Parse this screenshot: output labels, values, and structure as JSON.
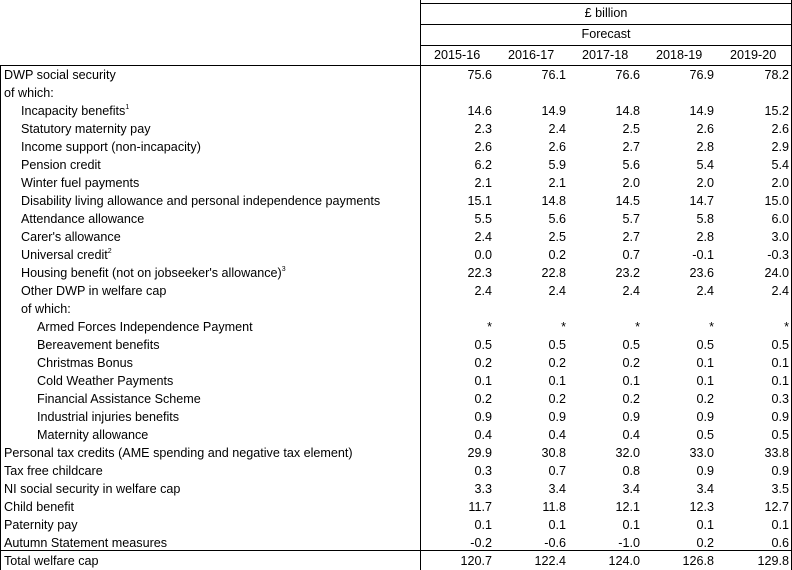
{
  "header": {
    "unit": "£ billion",
    "forecast": "Forecast",
    "years": [
      "2015-16",
      "2016-17",
      "2017-18",
      "2018-19",
      "2019-20"
    ]
  },
  "rows": [
    {
      "label": "DWP social security",
      "indent": 0,
      "values": [
        "75.6",
        "76.1",
        "76.6",
        "76.9",
        "78.2"
      ]
    },
    {
      "label": "of which:",
      "indent": 0,
      "values": []
    },
    {
      "label": "Incapacity benefits",
      "sup": "1",
      "indent": 1,
      "values": [
        "14.6",
        "14.9",
        "14.8",
        "14.9",
        "15.2"
      ]
    },
    {
      "label": "Statutory maternity pay",
      "indent": 1,
      "values": [
        "2.3",
        "2.4",
        "2.5",
        "2.6",
        "2.6"
      ]
    },
    {
      "label": "Income support (non-incapacity)",
      "indent": 1,
      "values": [
        "2.6",
        "2.6",
        "2.7",
        "2.8",
        "2.9"
      ]
    },
    {
      "label": "Pension credit",
      "indent": 1,
      "values": [
        "6.2",
        "5.9",
        "5.6",
        "5.4",
        "5.4"
      ]
    },
    {
      "label": "Winter fuel payments",
      "indent": 1,
      "values": [
        "2.1",
        "2.1",
        "2.0",
        "2.0",
        "2.0"
      ]
    },
    {
      "label": "Disability living allowance and personal independence payments",
      "indent": 1,
      "values": [
        "15.1",
        "14.8",
        "14.5",
        "14.7",
        "15.0"
      ]
    },
    {
      "label": "Attendance allowance",
      "indent": 1,
      "values": [
        "5.5",
        "5.6",
        "5.7",
        "5.8",
        "6.0"
      ]
    },
    {
      "label": "Carer's allowance",
      "indent": 1,
      "values": [
        "2.4",
        "2.5",
        "2.7",
        "2.8",
        "3.0"
      ]
    },
    {
      "label": "Universal credit",
      "sup": "2",
      "indent": 1,
      "values": [
        "0.0",
        "0.2",
        "0.7",
        "-0.1",
        "-0.3"
      ]
    },
    {
      "label": "Housing benefit (not on jobseeker's allowance)",
      "sup": "3",
      "indent": 1,
      "values": [
        "22.3",
        "22.8",
        "23.2",
        "23.6",
        "24.0"
      ]
    },
    {
      "label": "Other DWP in welfare cap",
      "indent": 1,
      "values": [
        "2.4",
        "2.4",
        "2.4",
        "2.4",
        "2.4"
      ]
    },
    {
      "label": "of which:",
      "indent": 1,
      "values": []
    },
    {
      "label": "Armed Forces Independence Payment",
      "indent": 2,
      "values": [
        "*",
        "*",
        "*",
        "*",
        "*"
      ]
    },
    {
      "label": "Bereavement benefits",
      "indent": 2,
      "values": [
        "0.5",
        "0.5",
        "0.5",
        "0.5",
        "0.5"
      ]
    },
    {
      "label": "Christmas Bonus",
      "indent": 2,
      "values": [
        "0.2",
        "0.2",
        "0.2",
        "0.1",
        "0.1"
      ]
    },
    {
      "label": "Cold Weather Payments",
      "indent": 2,
      "values": [
        "0.1",
        "0.1",
        "0.1",
        "0.1",
        "0.1"
      ]
    },
    {
      "label": "Financial Assistance Scheme",
      "indent": 2,
      "values": [
        "0.2",
        "0.2",
        "0.2",
        "0.2",
        "0.3"
      ]
    },
    {
      "label": "Industrial injuries benefits",
      "indent": 2,
      "values": [
        "0.9",
        "0.9",
        "0.9",
        "0.9",
        "0.9"
      ]
    },
    {
      "label": "Maternity allowance",
      "indent": 2,
      "values": [
        "0.4",
        "0.4",
        "0.4",
        "0.5",
        "0.5"
      ]
    },
    {
      "label": "Personal tax credits (AME spending and negative tax element)",
      "indent": 0,
      "values": [
        "29.9",
        "30.8",
        "32.0",
        "33.0",
        "33.8"
      ]
    },
    {
      "label": "Tax free childcare",
      "indent": 0,
      "values": [
        "0.3",
        "0.7",
        "0.8",
        "0.9",
        "0.9"
      ]
    },
    {
      "label": "NI social security in welfare cap",
      "indent": 0,
      "values": [
        "3.3",
        "3.4",
        "3.4",
        "3.4",
        "3.5"
      ]
    },
    {
      "label": "Child benefit",
      "indent": 0,
      "values": [
        "11.7",
        "11.8",
        "12.1",
        "12.3",
        "12.7"
      ]
    },
    {
      "label": "Paternity pay",
      "indent": 0,
      "values": [
        "0.1",
        "0.1",
        "0.1",
        "0.1",
        "0.1"
      ]
    },
    {
      "label": "Autumn Statement measures",
      "indent": 0,
      "values": [
        "-0.2",
        "-0.6",
        "-1.0",
        "0.2",
        "0.6"
      ]
    },
    {
      "label": "Total welfare cap",
      "indent": 0,
      "values": [
        "120.7",
        "122.4",
        "124.0",
        "126.8",
        "129.8"
      ]
    }
  ]
}
